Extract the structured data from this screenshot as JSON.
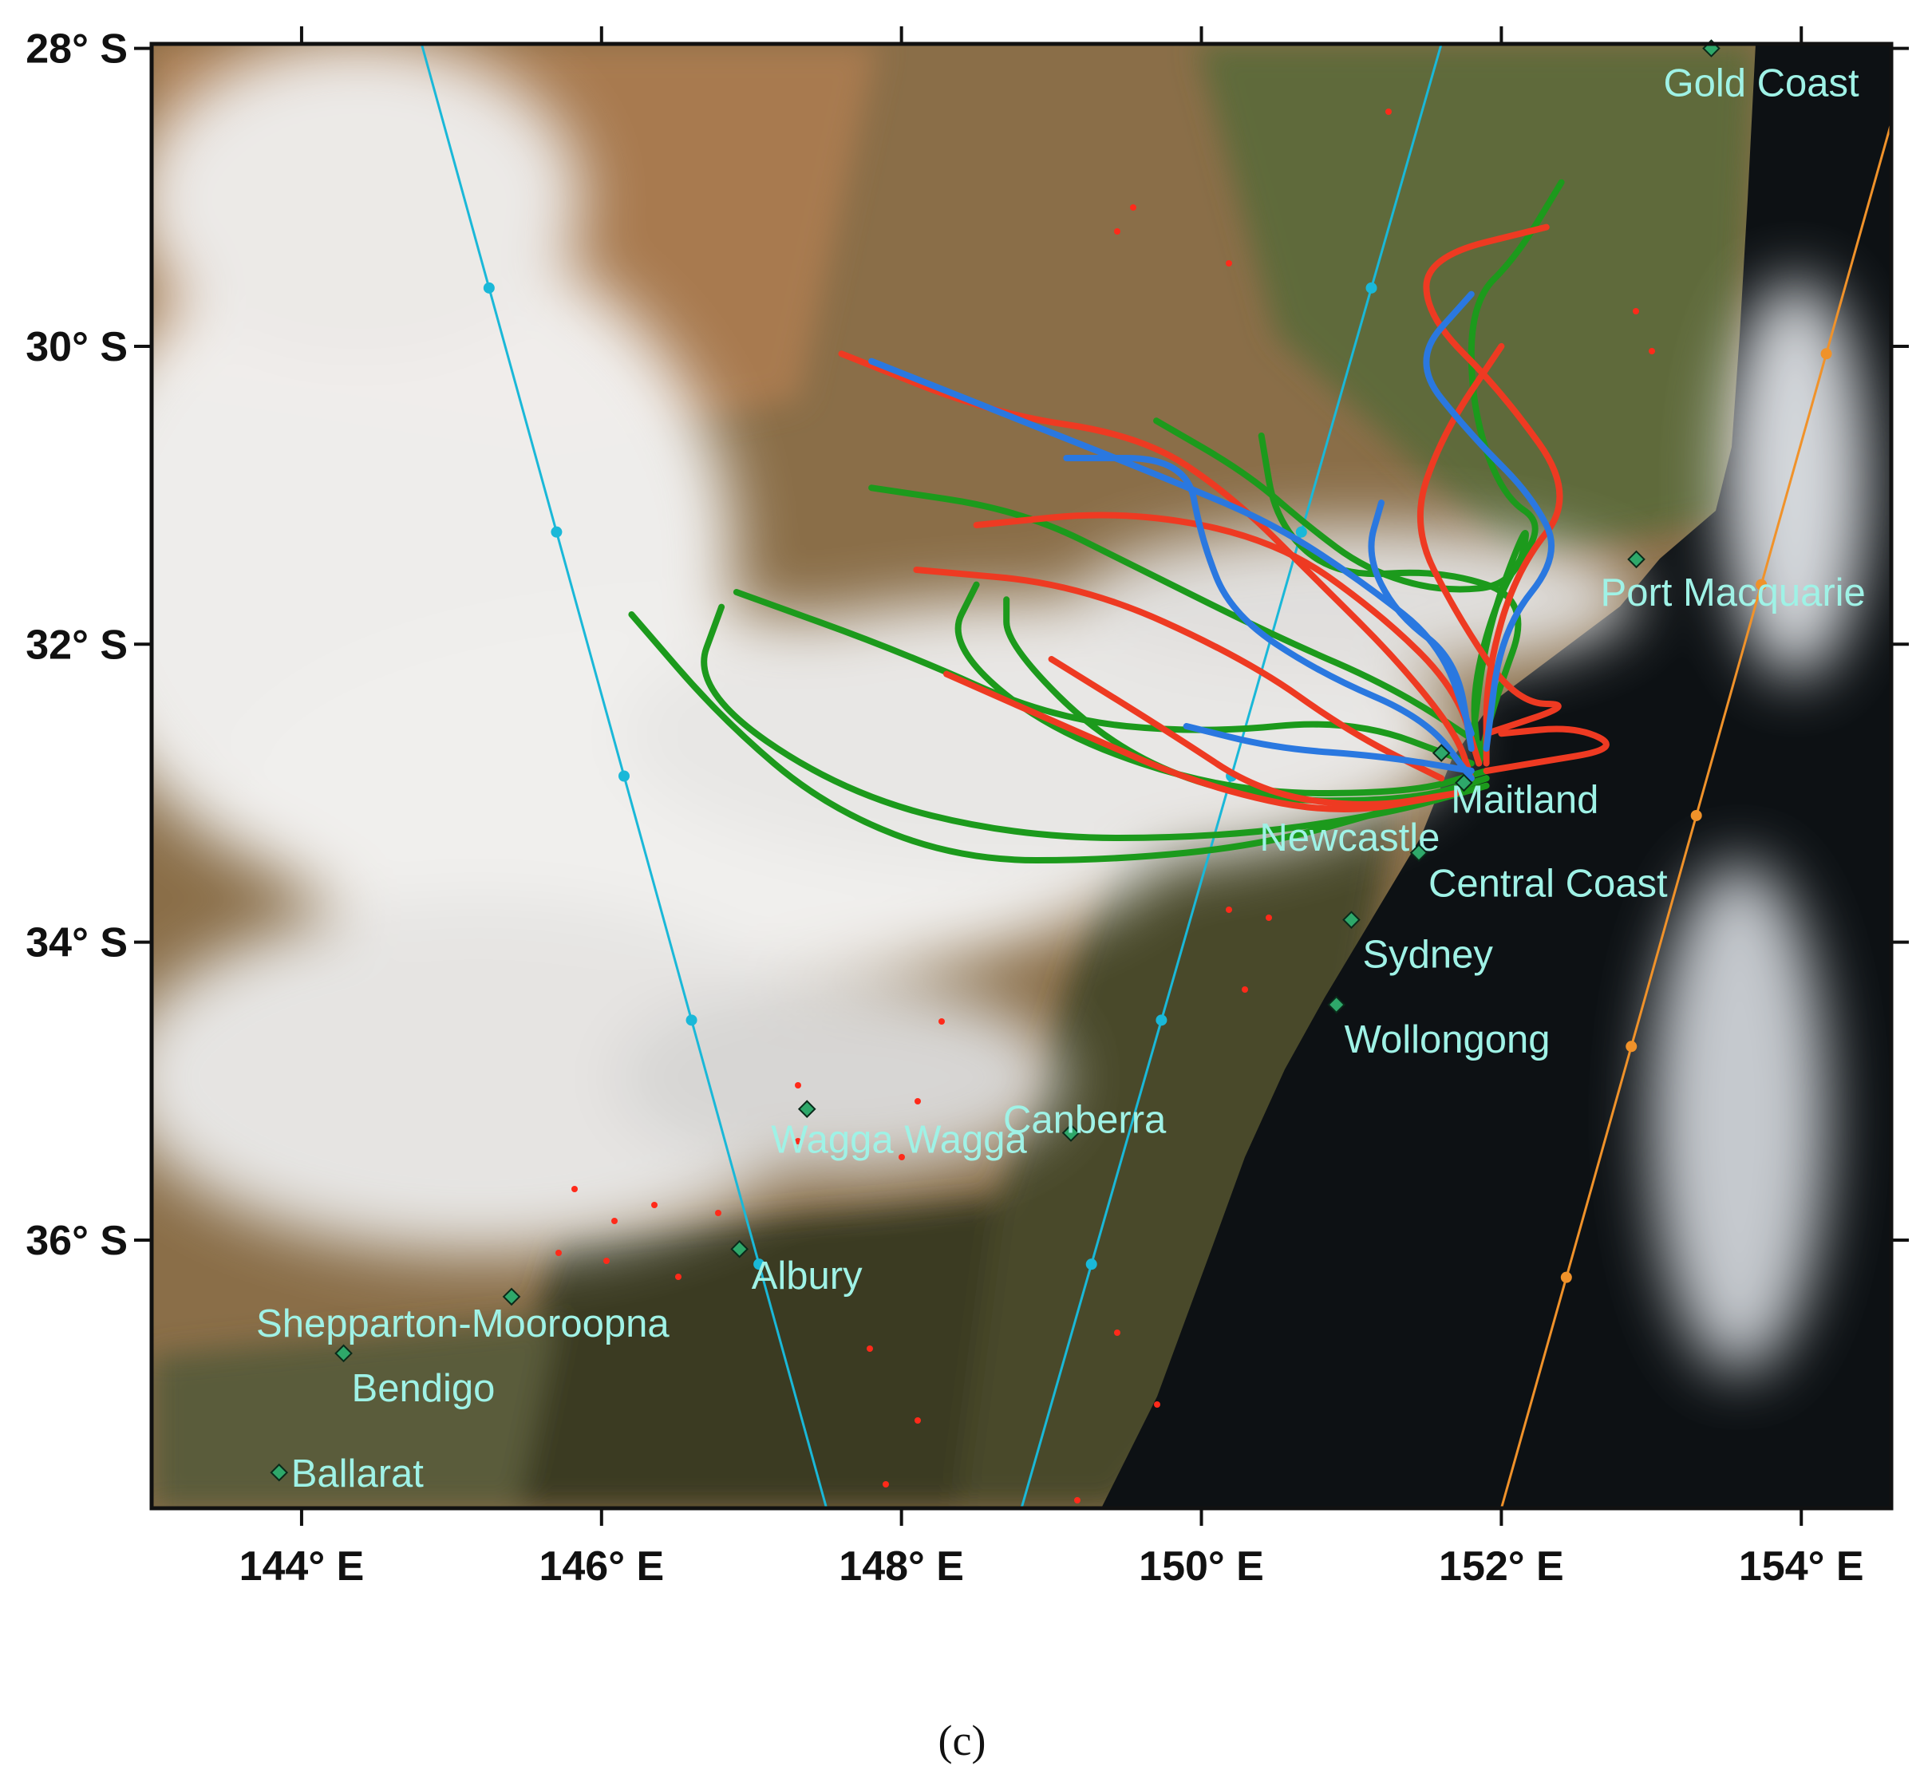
{
  "map": {
    "lon_ticks": [
      {
        "value": 144,
        "label": "144° E"
      },
      {
        "value": 146,
        "label": "146° E"
      },
      {
        "value": 148,
        "label": "148° E"
      },
      {
        "value": 150,
        "label": "150° E"
      },
      {
        "value": 152,
        "label": "152° E"
      },
      {
        "value": 154,
        "label": "154° E"
      }
    ],
    "lat_ticks": [
      {
        "value": -28,
        "label": "28° S"
      },
      {
        "value": -30,
        "label": "30° S"
      },
      {
        "value": -32,
        "label": "32° S"
      },
      {
        "value": -34,
        "label": "34° S"
      },
      {
        "value": -36,
        "label": "36° S"
      }
    ],
    "extent": {
      "lon": [
        143.0,
        154.6
      ],
      "lat": [
        -37.8,
        -27.97
      ]
    },
    "cities": [
      {
        "name": "Gold Coast",
        "lon": 153.4,
        "lat": -28.0
      },
      {
        "name": "Port Macquarie",
        "lon": 152.9,
        "lat": -31.43
      },
      {
        "name": "Maitland",
        "lon": 151.6,
        "lat": -32.73
      },
      {
        "name": "Newcastle",
        "lon": 151.75,
        "lat": -32.93
      },
      {
        "name": "Central Coast",
        "lon": 151.45,
        "lat": -33.4
      },
      {
        "name": "Sydney",
        "lon": 151.0,
        "lat": -33.85
      },
      {
        "name": "Wollongong",
        "lon": 150.9,
        "lat": -34.42
      },
      {
        "name": "Wagga Wagga",
        "lon": 147.37,
        "lat": -35.12
      },
      {
        "name": "Canberra",
        "lon": 149.13,
        "lat": -35.28
      },
      {
        "name": "Albury",
        "lon": 146.92,
        "lat": -36.06
      },
      {
        "name": "Shepparton-Mooroopna",
        "lon": 145.4,
        "lat": -36.38
      },
      {
        "name": "Bendigo",
        "lon": 144.28,
        "lat": -36.76
      },
      {
        "name": "Ballarat",
        "lon": 143.85,
        "lat": -37.56
      }
    ],
    "orbit_tracks": [
      {
        "color": "#1ab8d8",
        "points": [
          [
            144.8,
            -27.97
          ],
          [
            147.5,
            -37.8
          ]
        ]
      },
      {
        "color": "#1ab8d8",
        "points": [
          [
            151.6,
            -27.97
          ],
          [
            148.8,
            -37.8
          ]
        ]
      },
      {
        "color": "#f0922a",
        "points": [
          [
            154.6,
            -28.5
          ],
          [
            152.0,
            -37.8
          ]
        ]
      }
    ],
    "trajectory_colors": {
      "red": "#ee3a22",
      "blue": "#2a78e0",
      "green": "#1c9a1c"
    },
    "caption": "(c)"
  },
  "chart_data": {
    "type": "line",
    "title": "",
    "xlabel": "",
    "ylabel": "",
    "xlim": [
      143.0,
      154.6
    ],
    "ylim": [
      -37.8,
      -27.97
    ],
    "series": [
      {
        "color": "red",
        "points": [
          [
            147.6,
            -30.05
          ],
          [
            148.6,
            -30.45
          ],
          [
            149.6,
            -30.6
          ],
          [
            150.2,
            -31.0
          ],
          [
            150.8,
            -31.6
          ],
          [
            151.3,
            -32.1
          ],
          [
            151.7,
            -32.6
          ],
          [
            151.8,
            -32.9
          ]
        ]
      },
      {
        "color": "red",
        "points": [
          [
            148.5,
            -31.2
          ],
          [
            149.5,
            -31.1
          ],
          [
            150.5,
            -31.3
          ],
          [
            151.2,
            -31.8
          ],
          [
            151.7,
            -32.3
          ],
          [
            151.85,
            -32.8
          ]
        ]
      },
      {
        "color": "red",
        "points": [
          [
            148.1,
            -31.5
          ],
          [
            149.2,
            -31.6
          ],
          [
            150.3,
            -32.1
          ],
          [
            151.0,
            -32.6
          ],
          [
            151.6,
            -32.9
          ]
        ]
      },
      {
        "color": "red",
        "points": [
          [
            149.0,
            -32.1
          ],
          [
            149.8,
            -32.6
          ],
          [
            150.4,
            -33.0
          ],
          [
            151.1,
            -33.1
          ],
          [
            151.7,
            -33.0
          ]
        ]
      },
      {
        "color": "red",
        "points": [
          [
            148.3,
            -32.2
          ],
          [
            149.2,
            -32.6
          ],
          [
            150.0,
            -32.95
          ],
          [
            150.9,
            -33.15
          ],
          [
            151.7,
            -33.0
          ]
        ]
      },
      {
        "color": "red",
        "points": [
          [
            152.3,
            -29.2
          ],
          [
            151.5,
            -29.4
          ],
          [
            151.5,
            -29.8
          ],
          [
            152.0,
            -30.3
          ],
          [
            152.5,
            -31.0
          ],
          [
            152.1,
            -31.5
          ],
          [
            151.9,
            -32.2
          ],
          [
            151.9,
            -32.8
          ]
        ]
      },
      {
        "color": "red",
        "points": [
          [
            152.0,
            -30.0
          ],
          [
            151.6,
            -30.6
          ],
          [
            151.4,
            -31.2
          ],
          [
            151.7,
            -31.8
          ],
          [
            152.1,
            -32.4
          ],
          [
            152.5,
            -32.4
          ],
          [
            151.9,
            -32.6
          ]
        ]
      },
      {
        "color": "red",
        "points": [
          [
            152.0,
            -32.6
          ],
          [
            152.5,
            -32.55
          ],
          [
            152.8,
            -32.7
          ],
          [
            152.2,
            -32.8
          ],
          [
            151.9,
            -32.85
          ]
        ]
      },
      {
        "color": "blue",
        "points": [
          [
            147.8,
            -30.1
          ],
          [
            148.8,
            -30.5
          ],
          [
            149.8,
            -30.9
          ],
          [
            150.5,
            -31.2
          ],
          [
            151.1,
            -31.6
          ],
          [
            151.6,
            -32.0
          ],
          [
            151.8,
            -32.6
          ]
        ]
      },
      {
        "color": "blue",
        "points": [
          [
            149.1,
            -30.75
          ],
          [
            149.9,
            -30.75
          ],
          [
            150.0,
            -31.3
          ],
          [
            150.2,
            -31.8
          ],
          [
            150.8,
            -32.2
          ],
          [
            151.5,
            -32.5
          ],
          [
            151.8,
            -32.9
          ]
        ]
      },
      {
        "color": "blue",
        "points": [
          [
            149.9,
            -32.55
          ],
          [
            150.5,
            -32.7
          ],
          [
            151.2,
            -32.75
          ],
          [
            151.8,
            -32.85
          ]
        ]
      },
      {
        "color": "blue",
        "points": [
          [
            151.8,
            -29.65
          ],
          [
            151.4,
            -30.1
          ],
          [
            151.8,
            -30.6
          ],
          [
            152.2,
            -31.0
          ],
          [
            152.4,
            -31.4
          ],
          [
            152.0,
            -31.9
          ],
          [
            151.9,
            -32.7
          ]
        ]
      },
      {
        "color": "blue",
        "points": [
          [
            151.2,
            -31.05
          ],
          [
            151.1,
            -31.4
          ],
          [
            151.3,
            -31.8
          ],
          [
            151.7,
            -32.1
          ],
          [
            151.8,
            -32.7
          ]
        ]
      },
      {
        "color": "green",
        "points": [
          [
            146.2,
            -31.8
          ],
          [
            146.8,
            -32.5
          ],
          [
            147.5,
            -33.1
          ],
          [
            148.4,
            -33.45
          ],
          [
            149.4,
            -33.45
          ],
          [
            150.4,
            -33.35
          ],
          [
            151.3,
            -33.1
          ],
          [
            151.9,
            -32.9
          ]
        ]
      },
      {
        "color": "green",
        "points": [
          [
            146.8,
            -31.75
          ],
          [
            146.6,
            -32.3
          ],
          [
            147.6,
            -33.0
          ],
          [
            148.8,
            -33.3
          ],
          [
            150.1,
            -33.3
          ],
          [
            151.2,
            -33.15
          ],
          [
            151.9,
            -32.95
          ]
        ]
      },
      {
        "color": "green",
        "points": [
          [
            146.9,
            -31.65
          ],
          [
            148.0,
            -32.05
          ],
          [
            149.0,
            -32.5
          ],
          [
            150.0,
            -32.6
          ],
          [
            151.0,
            -32.5
          ],
          [
            151.8,
            -32.8
          ]
        ]
      },
      {
        "color": "green",
        "points": [
          [
            147.8,
            -30.95
          ],
          [
            148.8,
            -31.1
          ],
          [
            149.6,
            -31.5
          ],
          [
            150.5,
            -31.95
          ],
          [
            151.3,
            -32.3
          ],
          [
            151.9,
            -32.7
          ]
        ]
      },
      {
        "color": "green",
        "points": [
          [
            148.5,
            -31.6
          ],
          [
            148.3,
            -32.0
          ],
          [
            149.0,
            -32.6
          ],
          [
            150.2,
            -33.0
          ],
          [
            151.4,
            -33.0
          ],
          [
            151.9,
            -32.85
          ]
        ]
      },
      {
        "color": "green",
        "points": [
          [
            148.7,
            -31.7
          ],
          [
            148.7,
            -32.0
          ],
          [
            149.4,
            -32.7
          ],
          [
            150.3,
            -33.05
          ],
          [
            151.4,
            -33.05
          ],
          [
            151.9,
            -32.9
          ]
        ]
      },
      {
        "color": "green",
        "points": [
          [
            149.7,
            -30.5
          ],
          [
            150.3,
            -30.85
          ],
          [
            150.7,
            -31.2
          ],
          [
            151.1,
            -31.5
          ],
          [
            151.6,
            -31.65
          ],
          [
            152.1,
            -31.6
          ],
          [
            152.2,
            -31.1
          ],
          [
            151.9,
            -31.9
          ],
          [
            151.8,
            -32.7
          ]
        ]
      },
      {
        "color": "green",
        "points": [
          [
            152.4,
            -28.9
          ],
          [
            152.1,
            -29.4
          ],
          [
            151.8,
            -29.7
          ],
          [
            151.8,
            -30.4
          ],
          [
            152.0,
            -31.0
          ],
          [
            152.3,
            -31.2
          ],
          [
            152.0,
            -31.6
          ],
          [
            151.8,
            -32.3
          ],
          [
            151.85,
            -32.8
          ]
        ]
      },
      {
        "color": "green",
        "points": [
          [
            150.4,
            -30.6
          ],
          [
            150.5,
            -31.2
          ],
          [
            150.9,
            -31.55
          ],
          [
            151.6,
            -31.5
          ],
          [
            152.2,
            -31.7
          ],
          [
            151.95,
            -32.4
          ],
          [
            151.85,
            -32.8
          ]
        ]
      }
    ]
  }
}
